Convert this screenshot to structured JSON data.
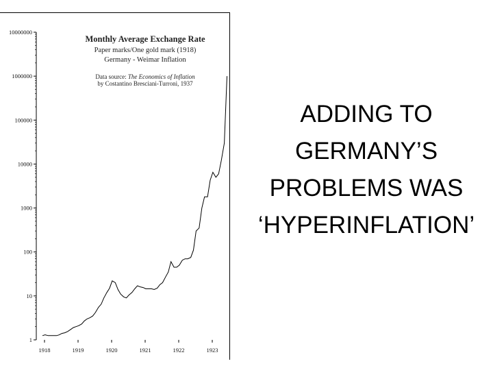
{
  "slide": {
    "text_lines": [
      "ADDING TO",
      "GERMANY’S",
      "PROBLEMS WAS",
      "‘HYPERINFLATION’"
    ]
  },
  "chart_data": {
    "type": "line",
    "title": "Monthly Average Exchange Rate",
    "subtitle_lines": [
      "Paper marks/One gold mark (1918)",
      "Germany - Weimar Inflation"
    ],
    "source_prefix": "Data source: ",
    "source_title": "The Economics of Inflation",
    "source_author": "by Costantino Bresciani-Turroni, 1937",
    "y_scale": "log",
    "ylim": [
      1,
      10000000
    ],
    "y_ticks": [
      {
        "value": 10000000,
        "label": "10000000"
      },
      {
        "value": 1000000,
        "label": "1000000"
      },
      {
        "value": 100000,
        "label": "100000"
      },
      {
        "value": 10000,
        "label": "10000"
      },
      {
        "value": 1000,
        "label": "1000"
      },
      {
        "value": 100,
        "label": "100"
      },
      {
        "value": 10,
        "label": "10"
      },
      {
        "value": 1,
        "label": "1"
      }
    ],
    "x_ticks": [
      "1918",
      "1919",
      "1920",
      "1921",
      "1922",
      "1923"
    ],
    "xlim": [
      1918,
      1923.5
    ],
    "grid": false,
    "series": [
      {
        "x": [
          1918.0,
          1918.08,
          1918.17,
          1918.25,
          1918.33,
          1918.42,
          1918.5,
          1918.58,
          1918.67,
          1918.75,
          1918.83,
          1918.92,
          1919.0,
          1919.08,
          1919.17,
          1919.25,
          1919.33,
          1919.42,
          1919.5,
          1919.58,
          1919.67,
          1919.75,
          1919.83,
          1919.92,
          1920.0,
          1920.08,
          1920.17,
          1920.25,
          1920.33,
          1920.42,
          1920.5,
          1920.58,
          1920.67,
          1920.75,
          1920.83,
          1920.92,
          1921.0,
          1921.08,
          1921.17,
          1921.25,
          1921.33,
          1921.42,
          1921.5,
          1921.58,
          1921.67,
          1921.75,
          1921.83,
          1921.92,
          1922.0,
          1922.08,
          1922.17,
          1922.25,
          1922.33,
          1922.42,
          1922.5,
          1922.58,
          1922.67,
          1922.75,
          1922.83,
          1922.92,
          1923.0,
          1923.08,
          1923.17,
          1923.25,
          1923.33,
          1923.42,
          1923.5
        ],
        "values": [
          1.25,
          1.3,
          1.25,
          1.25,
          1.25,
          1.25,
          1.3,
          1.4,
          1.45,
          1.55,
          1.7,
          1.9,
          2.0,
          2.1,
          2.3,
          2.7,
          3.0,
          3.2,
          3.5,
          4.2,
          5.5,
          6.5,
          9.0,
          12.0,
          15.0,
          22.0,
          20.0,
          14.0,
          11.0,
          9.5,
          9.0,
          10.5,
          12.0,
          14.5,
          17.0,
          16.0,
          15.5,
          14.5,
          14.5,
          14.5,
          14.0,
          15.0,
          18.0,
          20.0,
          27.0,
          35.0,
          60.0,
          45.0,
          45.0,
          50.0,
          65.0,
          70.0,
          70.0,
          75.0,
          110.0,
          300.0,
          350.0,
          1000.0,
          1800.0,
          1800.0,
          4300.0,
          6500.0,
          5000.0,
          6000.0,
          12000.0,
          30000.0,
          1000000.0
        ]
      }
    ]
  }
}
